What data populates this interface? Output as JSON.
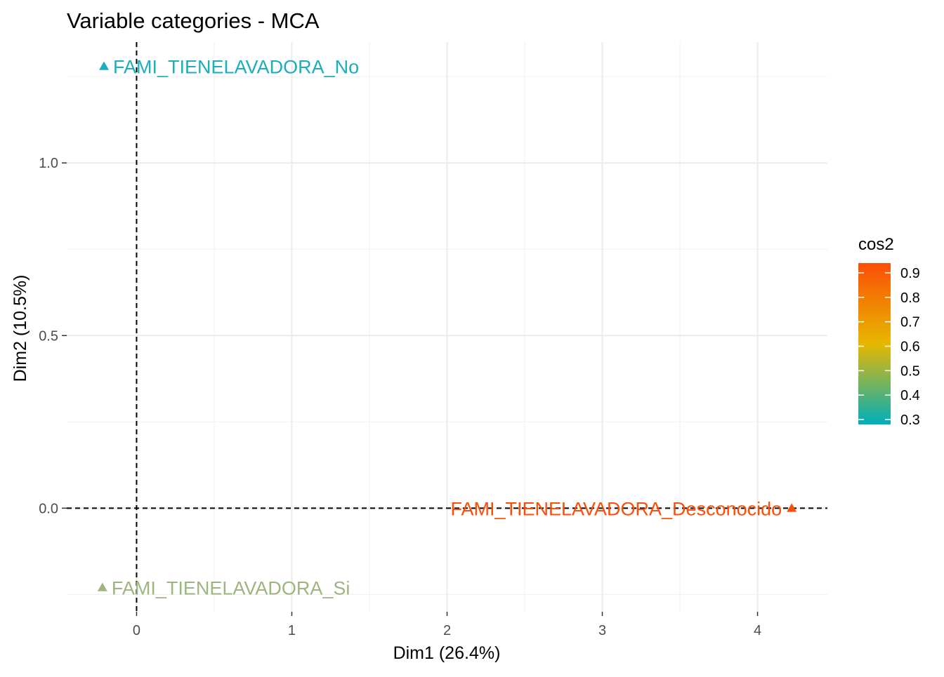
{
  "chart_data": {
    "type": "scatter",
    "title": "Variable categories - MCA",
    "xlabel": "Dim1 (26.4%)",
    "ylabel": "Dim2 (10.5%)",
    "xlim": [
      -0.45,
      4.45
    ],
    "ylim": [
      -0.3,
      1.35
    ],
    "x_ticks": [
      0,
      1,
      2,
      3,
      4
    ],
    "x_tick_labels": [
      "0",
      "1",
      "2",
      "3",
      "4"
    ],
    "x_minor_ticks": [
      0.5,
      1.5,
      2.5,
      3.5
    ],
    "y_ticks": [
      0.0,
      0.5,
      1.0
    ],
    "y_tick_labels": [
      "0.0",
      "0.5",
      "1.0"
    ],
    "y_minor_ticks": [
      -0.25,
      0.25,
      0.75,
      1.25
    ],
    "grid": true,
    "reference_lines": {
      "x": 0,
      "y": 0,
      "style": "dashed"
    },
    "marker": "triangle",
    "points": [
      {
        "label": "FAMI_TIENELAVADORA_No",
        "x": -0.21,
        "y": 1.28,
        "cos2": 0.32,
        "color": "#1aaebe",
        "label_side": "right"
      },
      {
        "label": "FAMI_TIENELAVADORA_Desconocido",
        "x": 4.22,
        "y": 0.0,
        "cos2": 0.94,
        "color": "#fc4e07",
        "label_side": "left"
      },
      {
        "label": "FAMI_TIENELAVADORA_Si",
        "x": -0.22,
        "y": -0.23,
        "cos2": 0.43,
        "color": "#9db680",
        "label_side": "right"
      }
    ],
    "legend": {
      "title": "cos2",
      "position": "right",
      "ticks": [
        0.3,
        0.4,
        0.5,
        0.6,
        0.7,
        0.8,
        0.9
      ],
      "tick_labels": [
        "0.3",
        "0.4",
        "0.5",
        "0.6",
        "0.7",
        "0.8",
        "0.9"
      ],
      "range": [
        0.28,
        0.94
      ],
      "gradient": [
        "#00AFBB",
        "#E7B800",
        "#FC4E07"
      ]
    }
  }
}
